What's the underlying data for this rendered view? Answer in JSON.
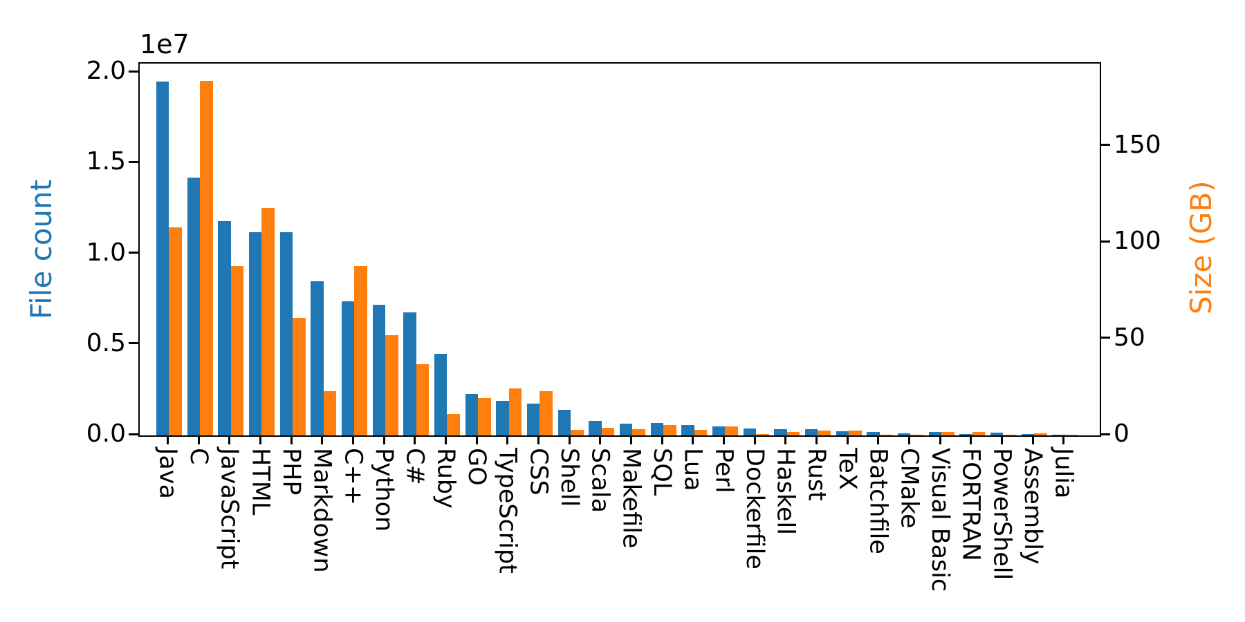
{
  "chart_data": {
    "type": "bar",
    "title": "",
    "grid": false,
    "legend": "none",
    "categories": [
      "Java",
      "C",
      "JavaScript",
      "HTML",
      "PHP",
      "Markdown",
      "C++",
      "Python",
      "C#",
      "Ruby",
      "GO",
      "TypeScript",
      "CSS",
      "Shell",
      "Scala",
      "Makefile",
      "SQL",
      "Lua",
      "Perl",
      "Dockerfile",
      "Haskell",
      "Rust",
      "TeX",
      "Batchfile",
      "CMake",
      "Visual Basic",
      "FORTRAN",
      "PowerShell",
      "Assembly",
      "Julia"
    ],
    "series": [
      {
        "name": "File count",
        "axis": "left",
        "color": "#1f77b4",
        "values": [
          19500000,
          14200000,
          11800000,
          11200000,
          11200000,
          8500000,
          7400000,
          7200000,
          6800000,
          4500000,
          2300000,
          1900000,
          1750000,
          1400000,
          800000,
          650000,
          700000,
          560000,
          500000,
          370000,
          350000,
          350000,
          220000,
          180000,
          110000,
          180000,
          90000,
          140000,
          80000,
          40000
        ]
      },
      {
        "name": "Size (GB)",
        "axis": "right",
        "color": "#ff7f0e",
        "values": [
          108,
          184,
          88,
          118,
          61,
          23,
          88,
          52,
          37,
          11,
          19.5,
          24.5,
          23,
          3,
          3.8,
          3.2,
          5.3,
          2.7,
          4.7,
          0.9,
          1.7,
          2.6,
          2.6,
          0.5,
          0.3,
          1.9,
          1.8,
          0.5,
          1.0,
          0.3
        ]
      }
    ],
    "left_axis": {
      "label": "File count",
      "color": "#1f77b4",
      "offset_label": "1e7",
      "tick_labels": [
        "0.0",
        "0.5",
        "1.0",
        "1.5",
        "2.0"
      ],
      "tick_values": [
        0,
        5000000,
        10000000,
        15000000,
        20000000
      ],
      "range": [
        0,
        20500000
      ]
    },
    "right_axis": {
      "label": "Size (GB)",
      "color": "#ff7f0e",
      "tick_labels": [
        "0",
        "50",
        "100",
        "150"
      ],
      "tick_values": [
        0,
        50,
        100,
        150
      ],
      "range": [
        0,
        193
      ]
    }
  }
}
